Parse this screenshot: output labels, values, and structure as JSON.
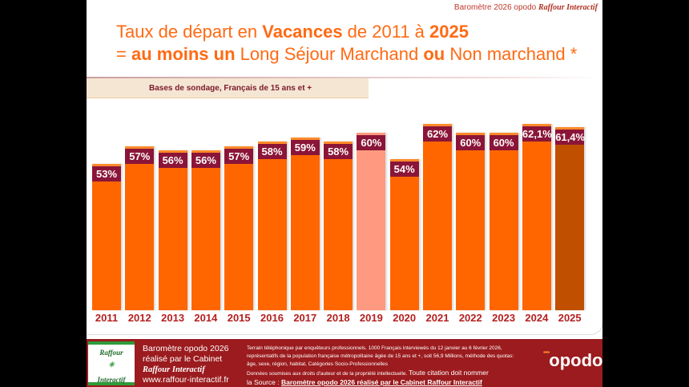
{
  "header": {
    "text": "Baromètre 2026 opodo",
    "brand": "Raffour Interactif"
  },
  "title": {
    "l1a": "Taux de départ en ",
    "l1b": "Vacances",
    "l1c": " de 2011 à ",
    "l1d": "2025",
    "l2a": "= ",
    "l2b": "au moins un",
    "l2c": " Long Séjour Marchand ",
    "l2d": "ou",
    "l2e": " Non marchand  *"
  },
  "base_label": "Bases de sondage, Français de 15 ans et +",
  "chart_data": {
    "type": "bar",
    "title": "Taux de départ en Vacances de 2011 à 2025",
    "categories": [
      "2011",
      "2012",
      "2013",
      "2014",
      "2015",
      "2016",
      "2017",
      "2018",
      "2019",
      "2020",
      "2021",
      "2022",
      "2023",
      "2024",
      "2025"
    ],
    "values": [
      53,
      57,
      56,
      56,
      57,
      58,
      59,
      58,
      60,
      54,
      62,
      60,
      60,
      62.1,
      61.4
    ],
    "labels": [
      "53%",
      "57%",
      "56%",
      "56%",
      "57%",
      "58%",
      "59%",
      "58%",
      "60%",
      "54%",
      "62%",
      "60%",
      "60%",
      "62,1%",
      "61,4%"
    ],
    "colors": {
      "default": "#ff6600",
      "2019": "#ff9a80",
      "2025": "#c05000",
      "label_bg": "#8b1538"
    }
  },
  "footer": {
    "l1": "Baromètre opodo 2026",
    "l2": "réalisé par le Cabinet",
    "l3": "Raffour Interactif",
    "l4": "www.raffour-interactif.fr",
    "logo_top": "Raffour",
    "logo_bottom": "Interactif",
    "m1": "Terrain téléphonique par enquêteurs professionnels. 1000 Français interviewés du 12 janvier au 6  février 2026, représentatifs de la population française métropolitaine âgée de 15 ans et +, soit 56,9 Millions, méthode des quotas: âge, sexe, région, habitat, Catégories Socio-Professionnelles",
    "m2": "Données soumises aux droits d'auteur et de la propriété intellectuelle.",
    "m3": "Toute citation doit nommer",
    "m4": "la Source : ",
    "m5": "Baromètre opodo 2026 réalisé par le Cabinet Raffour Interactif",
    "opodo": "opodo"
  }
}
